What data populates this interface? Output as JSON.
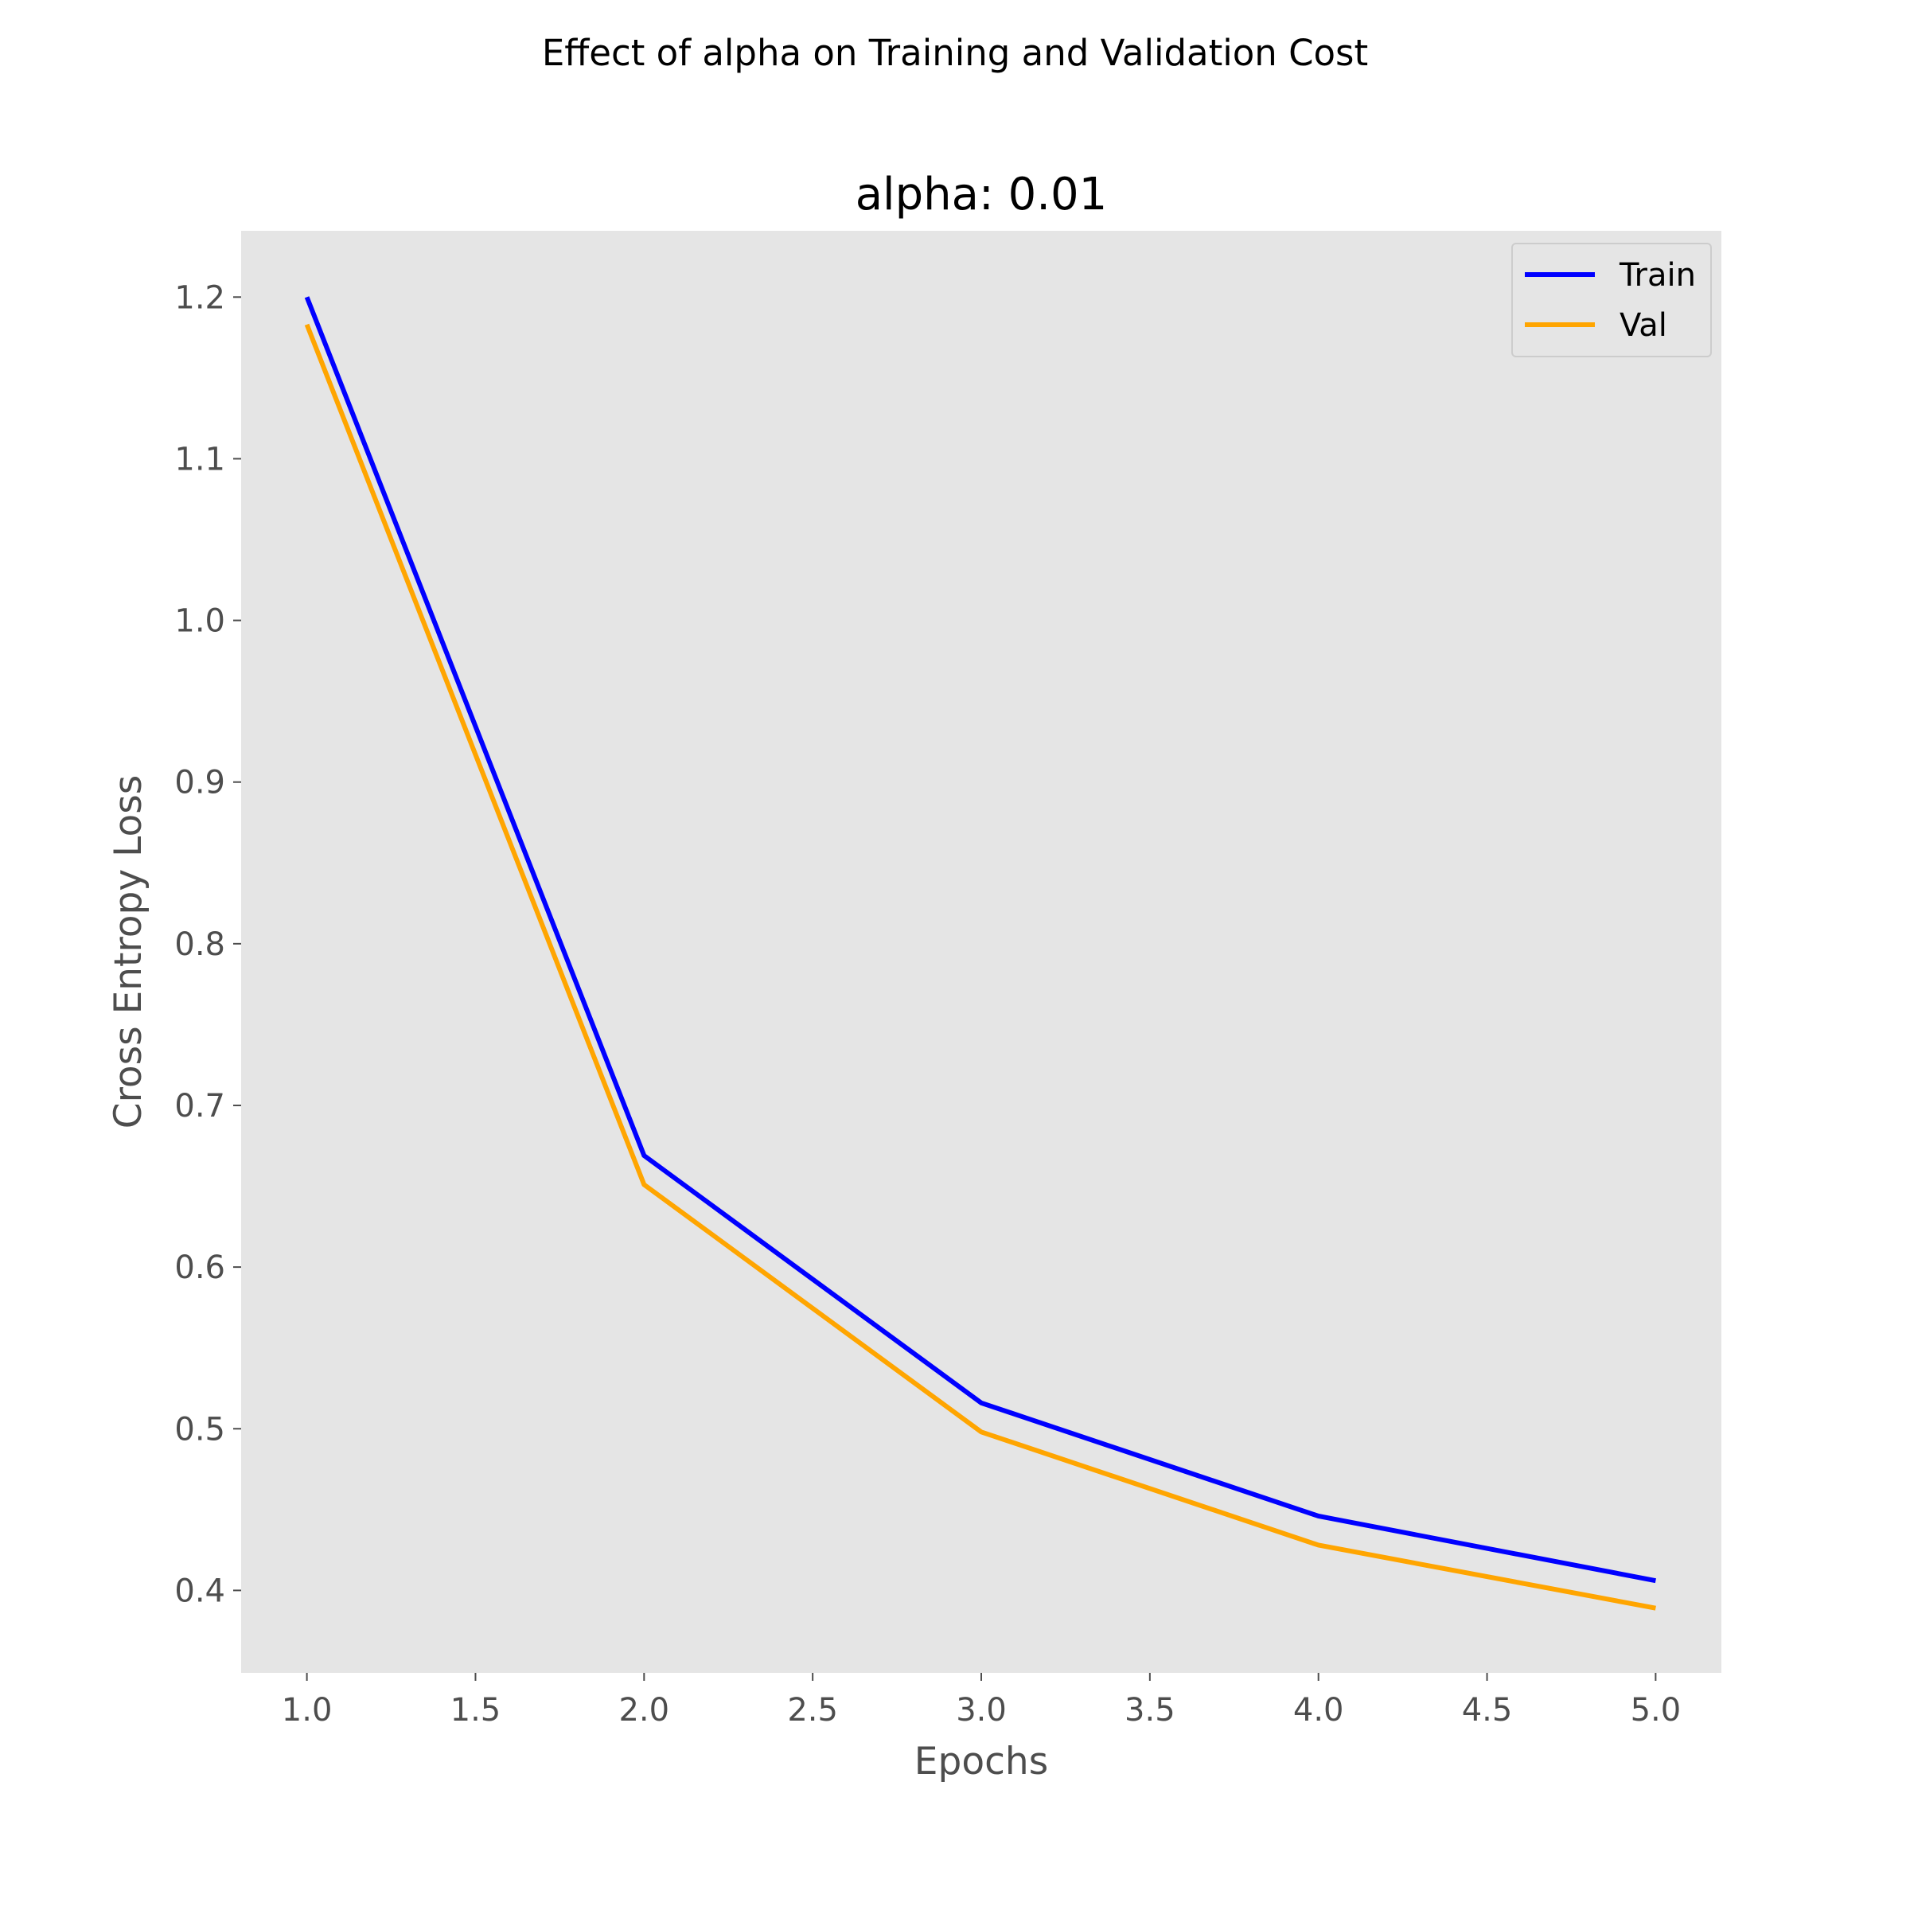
{
  "chart_data": {
    "type": "line",
    "suptitle": "Effect of alpha on Training and Validation Cost",
    "title": "alpha: 0.01",
    "xlabel": "Epochs",
    "ylabel": "Cross Entropy Loss",
    "x": [
      1,
      2,
      3,
      4,
      5
    ],
    "series": [
      {
        "name": "Train",
        "color": "#0000ff",
        "values": [
          1.2,
          0.669,
          0.516,
          0.446,
          0.406
        ]
      },
      {
        "name": "Val",
        "color": "#ffa500",
        "values": [
          1.183,
          0.651,
          0.498,
          0.428,
          0.389
        ]
      }
    ],
    "xlim": [
      0.805,
      5.195
    ],
    "ylim": [
      0.349,
      1.241
    ],
    "xticks": [
      "1.0",
      "1.5",
      "2.0",
      "2.5",
      "3.0",
      "3.5",
      "4.0",
      "4.5",
      "5.0"
    ],
    "yticks": [
      "0.4",
      "0.5",
      "0.6",
      "0.7",
      "0.8",
      "0.9",
      "1.0",
      "1.1",
      "1.2"
    ],
    "grid": false,
    "legend_position": "top-right",
    "background_color": "#e5e5e5"
  }
}
